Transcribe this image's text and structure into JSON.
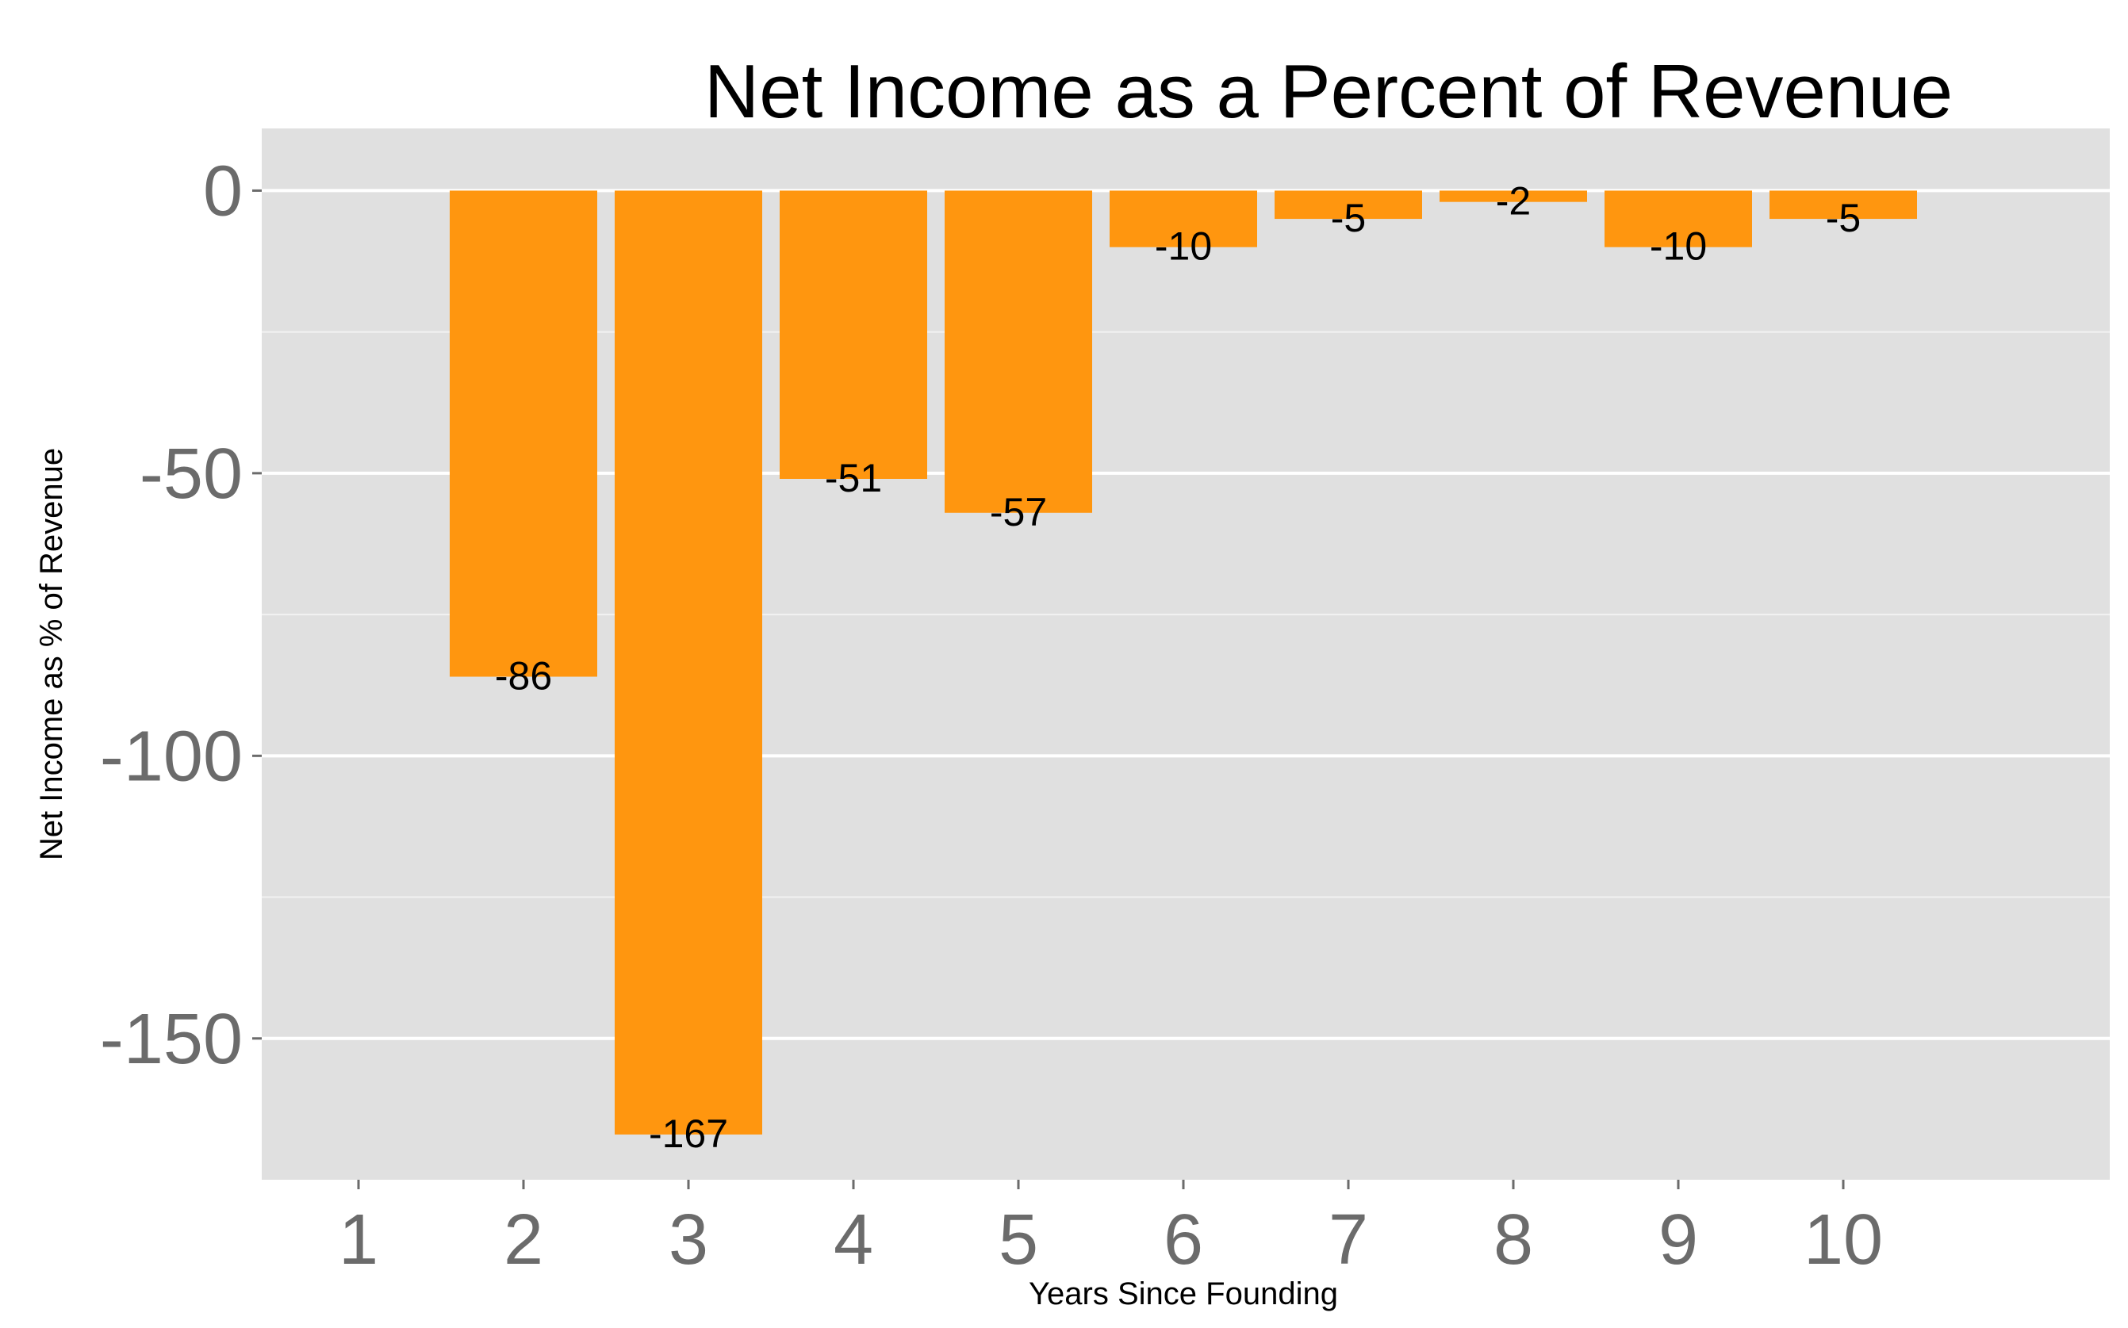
{
  "chart_data": {
    "type": "bar",
    "title": "Net Income as a Percent of Revenue",
    "xlabel": "Years Since Founding",
    "ylabel": "Net Income as % of Revenue",
    "categories": [
      "1",
      "2",
      "3",
      "4",
      "5",
      "6",
      "7",
      "8",
      "9",
      "10"
    ],
    "values": [
      null,
      -86,
      -167,
      -51,
      -57,
      -10,
      -5,
      -2,
      -10,
      -5
    ],
    "value_labels": [
      "",
      "-86",
      "-167",
      "-51",
      "-57",
      "-10",
      "-5",
      "-2",
      "-10",
      "-5"
    ],
    "y_ticks": [
      0,
      -50,
      -100,
      -150
    ],
    "y_tick_labels": [
      "0",
      "-50",
      "-100",
      "-150"
    ],
    "ylim": [
      -175,
      11
    ],
    "bar_color": "#FF960F",
    "panel_color": "#E0E0E0",
    "grid": true,
    "legend": "none"
  }
}
